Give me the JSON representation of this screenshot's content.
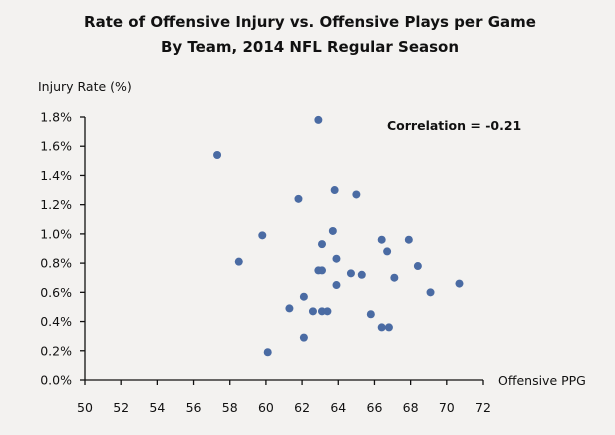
{
  "chart_data": {
    "type": "scatter",
    "title": "Rate of Offensive Injury vs. Offensive Plays per Game",
    "subtitle": "By Team, 2014 NFL Regular Season",
    "xlabel": "Offensive PPG",
    "ylabel": "Injury Rate (%)",
    "xlim": [
      50,
      72
    ],
    "ylim": [
      0,
      1.8
    ],
    "xticks": [
      50,
      52,
      54,
      56,
      58,
      60,
      62,
      64,
      66,
      68,
      70,
      72
    ],
    "yticks": [
      0.0,
      0.2,
      0.4,
      0.6,
      0.8,
      1.0,
      1.2,
      1.4,
      1.6,
      1.8
    ],
    "xtick_labels": [
      "50",
      "52",
      "54",
      "56",
      "58",
      "60",
      "62",
      "64",
      "66",
      "68",
      "70",
      "72"
    ],
    "ytick_labels": [
      "0.0%",
      "0.2%",
      "0.4%",
      "0.6%",
      "0.8%",
      "1.0%",
      "1.2%",
      "1.4%",
      "1.6%",
      "1.8%"
    ],
    "grid": false,
    "legend": "none",
    "annotation": "Correlation = -0.21",
    "marker_color": "#4a6ba3",
    "points": [
      {
        "x": 62.9,
        "y": 1.78
      },
      {
        "x": 57.3,
        "y": 1.54
      },
      {
        "x": 61.8,
        "y": 1.24
      },
      {
        "x": 63.8,
        "y": 1.3
      },
      {
        "x": 65.0,
        "y": 1.27
      },
      {
        "x": 59.8,
        "y": 0.99
      },
      {
        "x": 63.7,
        "y": 1.02
      },
      {
        "x": 58.5,
        "y": 0.81
      },
      {
        "x": 63.1,
        "y": 0.93
      },
      {
        "x": 63.9,
        "y": 0.83
      },
      {
        "x": 66.4,
        "y": 0.96
      },
      {
        "x": 66.7,
        "y": 0.88
      },
      {
        "x": 67.9,
        "y": 0.96
      },
      {
        "x": 62.9,
        "y": 0.75
      },
      {
        "x": 63.1,
        "y": 0.75
      },
      {
        "x": 64.7,
        "y": 0.73
      },
      {
        "x": 65.3,
        "y": 0.72
      },
      {
        "x": 67.1,
        "y": 0.7
      },
      {
        "x": 68.4,
        "y": 0.78
      },
      {
        "x": 63.9,
        "y": 0.65
      },
      {
        "x": 69.1,
        "y": 0.6
      },
      {
        "x": 70.7,
        "y": 0.66
      },
      {
        "x": 62.1,
        "y": 0.57
      },
      {
        "x": 61.3,
        "y": 0.49
      },
      {
        "x": 62.6,
        "y": 0.47
      },
      {
        "x": 63.1,
        "y": 0.47
      },
      {
        "x": 63.4,
        "y": 0.47
      },
      {
        "x": 65.8,
        "y": 0.45
      },
      {
        "x": 66.4,
        "y": 0.36
      },
      {
        "x": 66.8,
        "y": 0.36
      },
      {
        "x": 62.1,
        "y": 0.29
      },
      {
        "x": 60.1,
        "y": 0.19
      }
    ]
  }
}
